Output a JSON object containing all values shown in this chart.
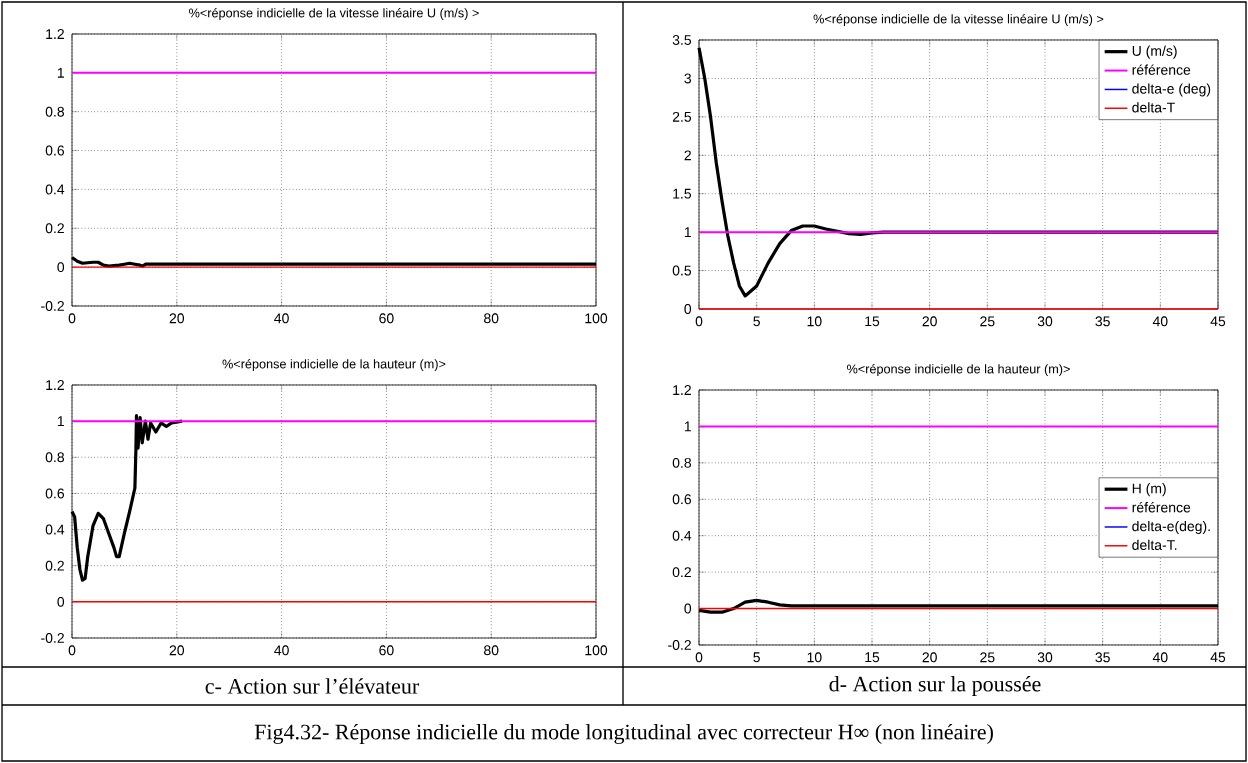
{
  "chart_data": [
    {
      "type": "line",
      "title": "%<réponse indicielle de la vitesse linéaire U (m/s) >",
      "xlim": [
        0,
        100
      ],
      "ylim": [
        -0.2,
        1.2
      ],
      "xticks": [
        0,
        20,
        40,
        60,
        80,
        100
      ],
      "yticks": [
        -0.2,
        0,
        0.2,
        0.4,
        0.6,
        0.8,
        1,
        1.2
      ],
      "grid": true,
      "legend": false,
      "series": [
        {
          "color": "#000000",
          "x": [
            0,
            1,
            2,
            4,
            5,
            6,
            7,
            9,
            10,
            11,
            12,
            13,
            13.5,
            14,
            100
          ],
          "values": [
            0.05,
            0.03,
            0.02,
            0.025,
            0.025,
            0.01,
            0.005,
            0.01,
            0.015,
            0.02,
            0.015,
            0.01,
            0.005,
            0.015,
            0.015
          ]
        },
        {
          "color": "#ff00ff",
          "x": [
            0,
            100
          ],
          "values": [
            1,
            1
          ]
        },
        {
          "color": "#ff0000",
          "x": [
            0,
            100
          ],
          "values": [
            0,
            0
          ]
        }
      ]
    },
    {
      "type": "line",
      "title": "%<réponse indicielle de la vitesse linéaire U (m/s) >",
      "xlim": [
        0,
        45
      ],
      "ylim": [
        0,
        3.5
      ],
      "xticks": [
        0,
        5,
        10,
        15,
        20,
        25,
        30,
        35,
        40,
        45
      ],
      "yticks": [
        0,
        0.5,
        1,
        1.5,
        2,
        2.5,
        3,
        3.5
      ],
      "grid": true,
      "legend": "top right",
      "series": [
        {
          "name": "U (m/s)",
          "color": "#000000",
          "x": [
            0,
            0.5,
            1,
            1.5,
            2,
            2.5,
            3,
            3.5,
            4,
            5,
            6,
            7,
            8,
            9,
            10,
            11,
            12,
            13,
            14,
            15,
            16,
            45
          ],
          "values": [
            3.4,
            3.0,
            2.5,
            1.9,
            1.4,
            0.95,
            0.6,
            0.3,
            0.17,
            0.3,
            0.6,
            0.85,
            1.02,
            1.08,
            1.08,
            1.04,
            1.01,
            0.98,
            0.97,
            0.99,
            1.0,
            1.0
          ]
        },
        {
          "name": "référence",
          "color": "#ff00ff",
          "x": [
            0,
            45
          ],
          "values": [
            1,
            1
          ]
        },
        {
          "name": "delta-e (deg)",
          "color": "#0000ff",
          "values": [
            null,
            null
          ]
        },
        {
          "name": "delta-T",
          "color": "#ff0000",
          "x": [
            0,
            45
          ],
          "values": [
            0,
            0
          ]
        }
      ]
    },
    {
      "type": "line",
      "title": "%<réponse indicielle de la hauteur (m)>",
      "xlim": [
        0,
        100
      ],
      "ylim": [
        -0.2,
        1.2
      ],
      "xticks": [
        0,
        20,
        40,
        60,
        80,
        100
      ],
      "yticks": [
        -0.2,
        0,
        0.2,
        0.4,
        0.6,
        0.8,
        1,
        1.2
      ],
      "grid": true,
      "legend": false,
      "annotations": [
        "c-   Action sur l’élévateur"
      ],
      "series": [
        {
          "color": "#000000",
          "x": [
            0,
            0.5,
            1,
            1.5,
            2,
            2.5,
            3,
            4,
            5,
            6,
            7,
            8,
            8.5,
            9,
            10,
            11,
            12,
            12.2,
            12.3,
            12.6,
            13,
            13.4,
            14,
            14.5,
            15,
            16,
            17,
            18,
            19,
            21
          ],
          "values": [
            0.5,
            0.47,
            0.3,
            0.18,
            0.12,
            0.13,
            0.25,
            0.42,
            0.49,
            0.46,
            0.38,
            0.3,
            0.25,
            0.25,
            0.38,
            0.5,
            0.63,
            0.85,
            1.03,
            0.85,
            1.02,
            0.88,
            1.0,
            0.9,
            0.99,
            0.94,
            0.99,
            0.97,
            0.99,
            1.0
          ]
        },
        {
          "color": "#ff00ff",
          "x": [
            0,
            100
          ],
          "values": [
            1,
            1
          ]
        },
        {
          "color": "#ff0000",
          "x": [
            0,
            100
          ],
          "values": [
            0,
            0
          ]
        }
      ]
    },
    {
      "type": "line",
      "title": "%<réponse indicielle de la hauteur (m)>",
      "xlim": [
        0,
        45
      ],
      "ylim": [
        -0.2,
        1.2
      ],
      "xticks": [
        0,
        5,
        10,
        15,
        20,
        25,
        30,
        35,
        40,
        45
      ],
      "yticks": [
        -0.2,
        0,
        0.2,
        0.4,
        0.6,
        0.8,
        1,
        1.2
      ],
      "grid": true,
      "legend": "right",
      "annotations": [
        "d-   Action sur la poussée",
        "Fig4.32- Réponse indicielle du mode longitudinal avec correcteur H∞ (non linéaire)"
      ],
      "series": [
        {
          "name": "H (m)",
          "color": "#000000",
          "x": [
            0,
            1,
            2,
            3,
            4,
            5,
            6,
            7,
            8,
            45
          ],
          "values": [
            -0.01,
            -0.02,
            -0.02,
            0.0,
            0.035,
            0.045,
            0.035,
            0.02,
            0.015,
            0.015
          ]
        },
        {
          "name": "référence",
          "color": "#ff00ff",
          "x": [
            0,
            45
          ],
          "values": [
            1,
            1
          ]
        },
        {
          "name": "delta-e(deg).",
          "color": "#0000ff",
          "values": [
            null,
            null
          ]
        },
        {
          "name": "delta-T.",
          "color": "#ff0000",
          "x": [
            0,
            45
          ],
          "values": [
            0,
            0
          ]
        }
      ]
    }
  ]
}
